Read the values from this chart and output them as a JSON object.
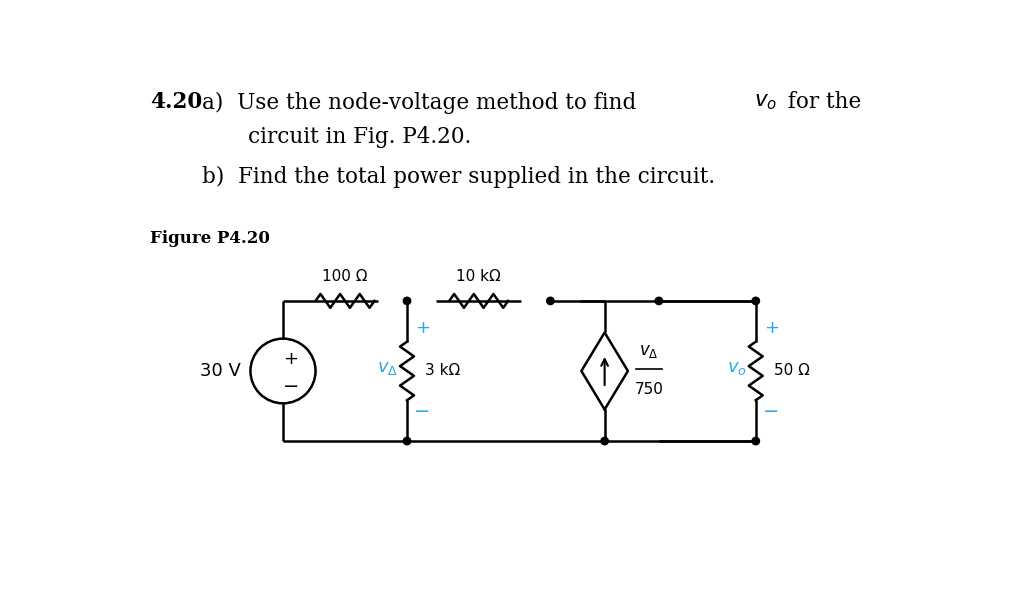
{
  "bg_color": "#ffffff",
  "text_color": "#000000",
  "cyan_color": "#29aae1",
  "figsize": [
    10.24,
    5.89
  ],
  "dpi": 100,
  "title_bold": "4.20",
  "line_a_pre": "a)  Use the node-voltage method to find ",
  "line_a_vo": "$v_o$",
  "line_a_post": " for the",
  "line_b": "circuit in Fig. P4.20.",
  "line_c": "b)  Find the total power supplied in the circuit.",
  "fig_label": "Figure P4.20",
  "r1_label": "100 Ω",
  "r2_label": "10 kΩ",
  "r3_label": "3 kΩ",
  "r4_label": "50 Ω",
  "vs_label": "30 V",
  "vA_cyan": "$v_\\Delta$",
  "vo_cyan": "$v_o$",
  "plus_cyan": "+",
  "minus_cyan": "−",
  "frac_top": "$v_\\Delta$",
  "frac_bot": "750"
}
